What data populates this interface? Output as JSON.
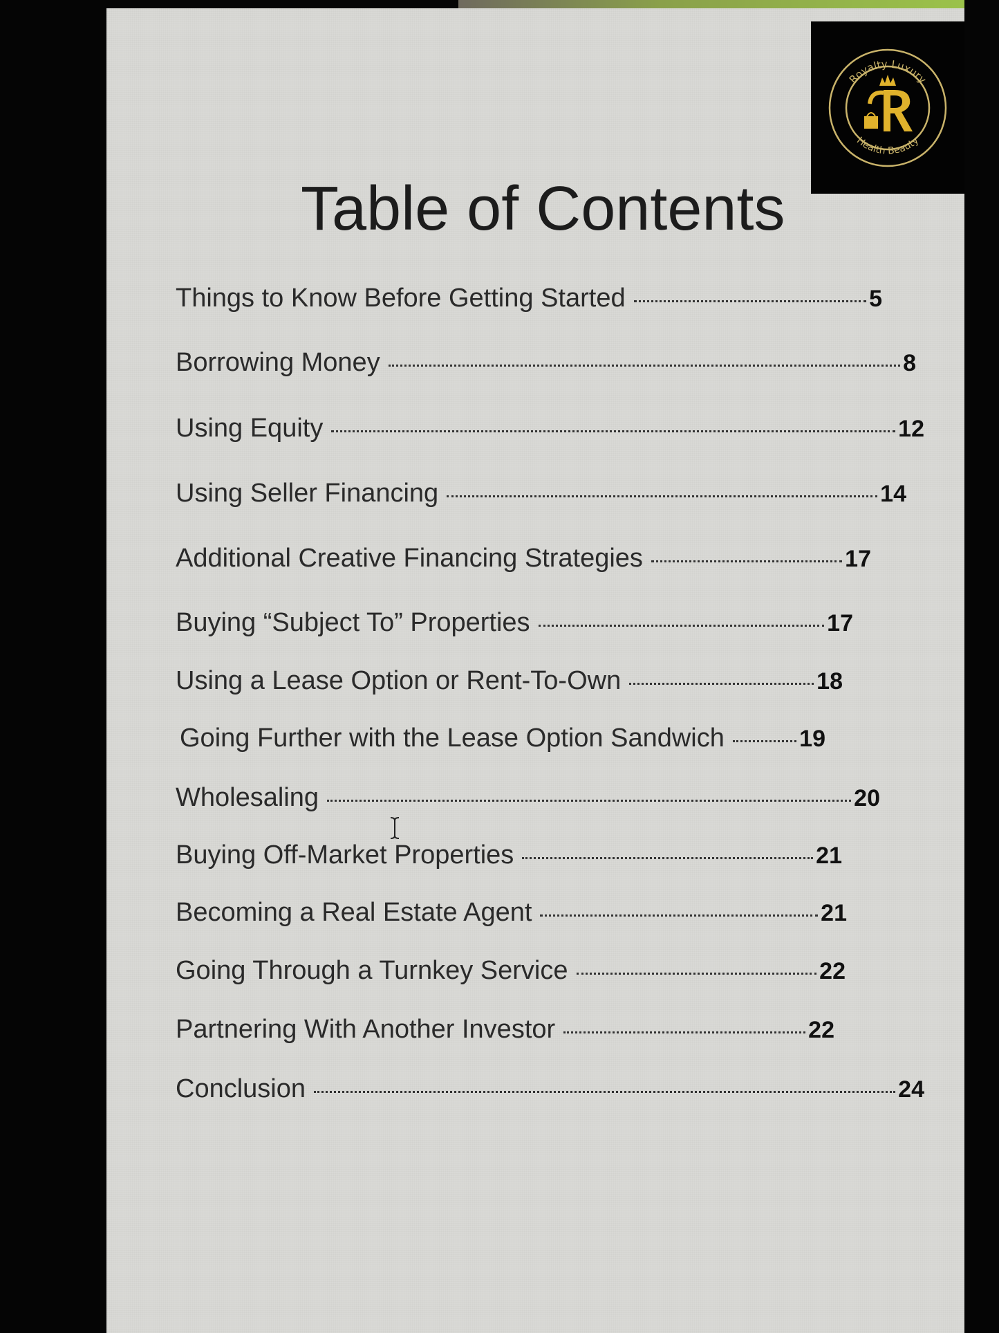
{
  "document": {
    "title": "Table of Contents",
    "logo": {
      "text_top": "Royalty Luxury",
      "text_bottom": "Health Beauty",
      "letter": "R",
      "color": "#d4a72c"
    },
    "entries": [
      {
        "label": "Things to Know Before Getting Started",
        "page": "5"
      },
      {
        "label": "Borrowing Money",
        "page": "8"
      },
      {
        "label": "Using Equity",
        "page": "12"
      },
      {
        "label": "Using Seller Financing",
        "page": "14"
      },
      {
        "label": "Additional Creative Financing Strategies",
        "page": "17"
      },
      {
        "label": "Buying “Subject To” Properties",
        "page": "17"
      },
      {
        "label": "Using a Lease Option or Rent-To-Own",
        "page": "18"
      },
      {
        "label": "Going Further with the Lease Option Sandwich",
        "page": "19"
      },
      {
        "label": "Wholesaling",
        "page": "20"
      },
      {
        "label": "Buying Off-Market Properties",
        "page": "21"
      },
      {
        "label": "Becoming a Real Estate Agent",
        "page": "21"
      },
      {
        "label": "Going Through a Turnkey Service",
        "page": "22"
      },
      {
        "label": "Partnering With Another Investor",
        "page": "22"
      },
      {
        "label": "Conclusion",
        "page": "24"
      }
    ]
  }
}
